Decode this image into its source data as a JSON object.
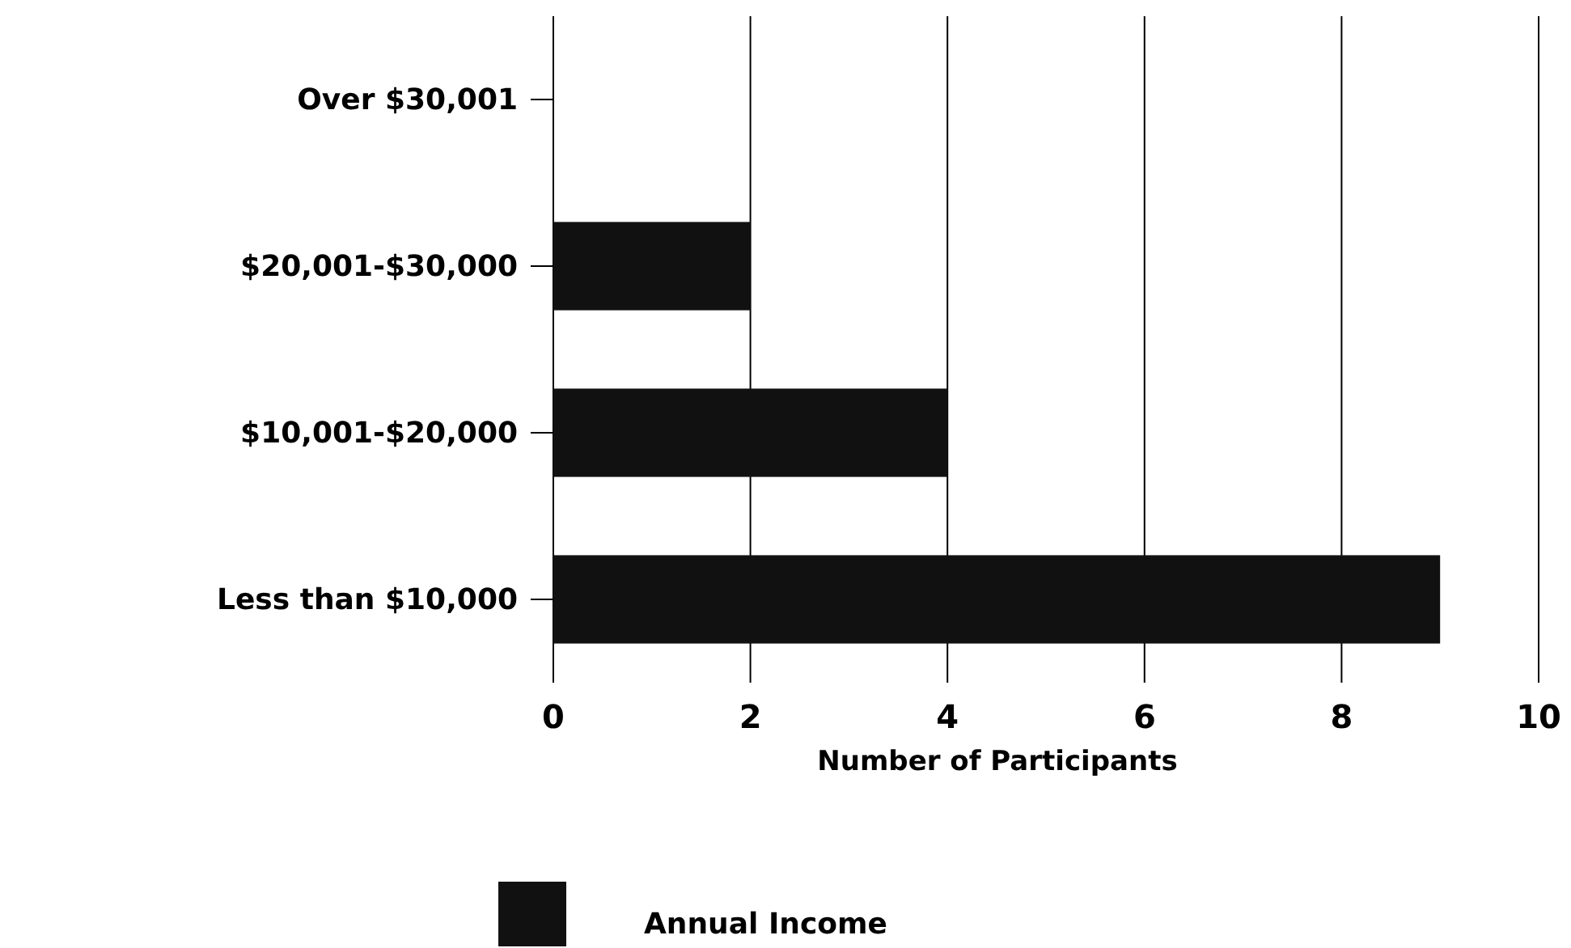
{
  "chart_data": {
    "type": "bar",
    "orientation": "horizontal",
    "xlabel": "Number of Participants",
    "categories": [
      "Over $30,001",
      "$20,001-$30,000",
      "$10,001-$20,000",
      "Less than $10,000"
    ],
    "series": [
      {
        "name": "Annual Income",
        "color": "#111111",
        "values": [
          0,
          2,
          4,
          9
        ]
      }
    ],
    "xlim": [
      0,
      10
    ],
    "xticks": [
      0,
      2,
      4,
      6,
      8,
      10
    ],
    "grid": "x",
    "legend": "bottom"
  }
}
